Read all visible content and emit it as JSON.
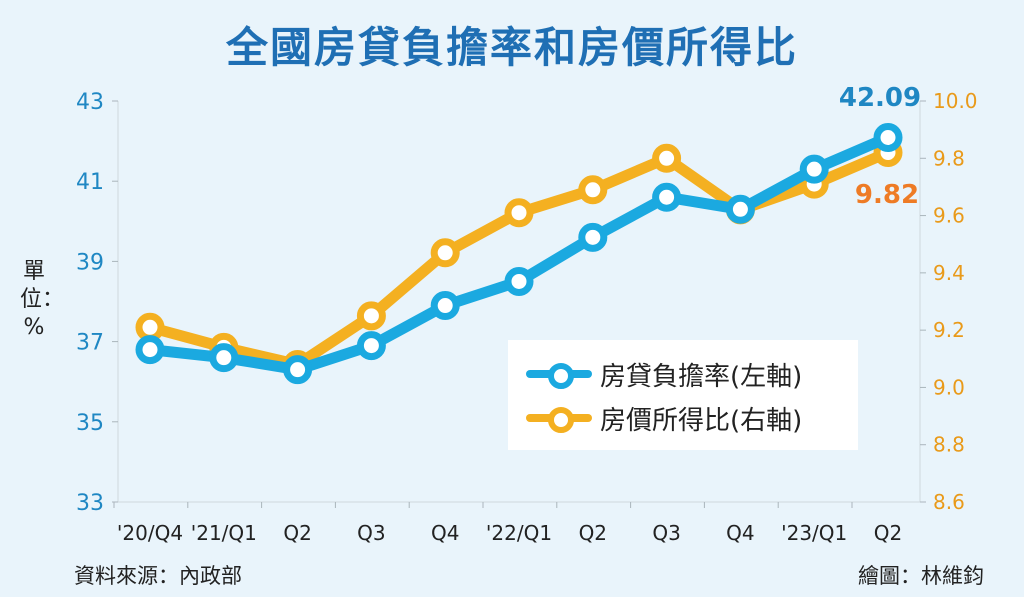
{
  "title": "全國房貸負擔率和房價所得比",
  "unit_label": "單位：%",
  "source": "資料來源：內政部",
  "credit": "繪圖：林維鈞",
  "colors": {
    "blue": "#1ba9e0",
    "orange": "#f4b021",
    "blue_text": "#1f87c3",
    "orange_text": "#e99a1a",
    "title": "#1f6fb4"
  },
  "chart_data": {
    "type": "line",
    "categories": [
      "'20/Q4",
      "'21/Q1",
      "Q2",
      "Q3",
      "Q4",
      "'22/Q1",
      "Q2",
      "Q3",
      "Q4",
      "'23/Q1",
      "Q2"
    ],
    "left_axis": {
      "min": 33,
      "max": 43,
      "ticks": [
        43,
        41,
        39,
        37,
        35,
        33
      ]
    },
    "right_axis": {
      "min": 8.6,
      "max": 10.0,
      "ticks": [
        "10.0",
        "9.8",
        "9.6",
        "9.4",
        "9.2",
        "9.0",
        "8.8",
        "8.6"
      ]
    },
    "series": [
      {
        "name": "房貸負擔率(左軸)",
        "axis": "left",
        "color": "#1ba9e0",
        "values": [
          36.8,
          36.6,
          36.3,
          36.9,
          37.9,
          38.5,
          39.6,
          40.6,
          40.3,
          41.3,
          42.09
        ],
        "end_label": "42.09"
      },
      {
        "name": "房價所得比(右軸)",
        "axis": "right",
        "color": "#f4b021",
        "values": [
          9.21,
          9.14,
          9.08,
          9.25,
          9.47,
          9.61,
          9.69,
          9.8,
          9.62,
          9.71,
          9.82
        ],
        "end_label": "9.82"
      }
    ],
    "grid": false,
    "legend": "center-right"
  }
}
